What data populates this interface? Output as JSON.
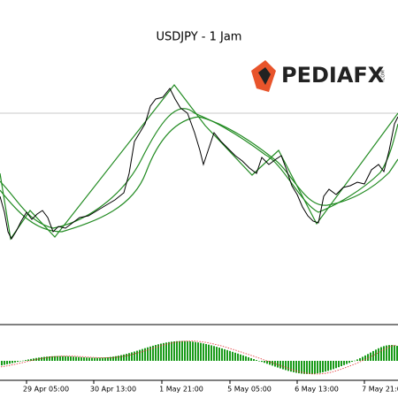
{
  "header": {
    "title": "USDJPY - 1 Jam"
  },
  "logo": {
    "name": "PEDIAFX",
    "suffix": ".COM"
  },
  "x_axis": {
    "labels": [
      "29 Apr 05:00",
      "30 Apr 13:00",
      "1 May 21:00",
      "5 May 05:00",
      "6 May 13:00",
      "7 May 21:00"
    ]
  }
}
